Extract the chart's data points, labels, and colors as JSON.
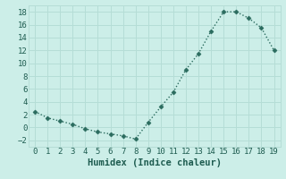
{
  "x": [
    0,
    1,
    2,
    3,
    4,
    5,
    6,
    7,
    8,
    9,
    10,
    11,
    12,
    13,
    14,
    15,
    16,
    17,
    18,
    19
  ],
  "y": [
    2.5,
    1.5,
    1.0,
    0.5,
    -0.2,
    -0.7,
    -1.0,
    -1.3,
    -1.8,
    0.8,
    3.2,
    5.5,
    9.0,
    11.5,
    15.0,
    18.0,
    18.0,
    17.0,
    15.5,
    12.0
  ],
  "line_color": "#2a6b5e",
  "marker": "D",
  "marker_size": 2.5,
  "xlabel": "Humidex (Indice chaleur)",
  "xlim": [
    -0.5,
    19.5
  ],
  "ylim": [
    -3,
    19
  ],
  "xticks": [
    0,
    1,
    2,
    3,
    4,
    5,
    6,
    7,
    8,
    9,
    10,
    11,
    12,
    13,
    14,
    15,
    16,
    17,
    18,
    19
  ],
  "yticks": [
    -2,
    0,
    2,
    4,
    6,
    8,
    10,
    12,
    14,
    16,
    18
  ],
  "bg_color": "#cceee8",
  "grid_color": "#b5ddd6",
  "font_color": "#1e5c50",
  "label_fontsize": 7.5,
  "tick_fontsize": 6.5
}
